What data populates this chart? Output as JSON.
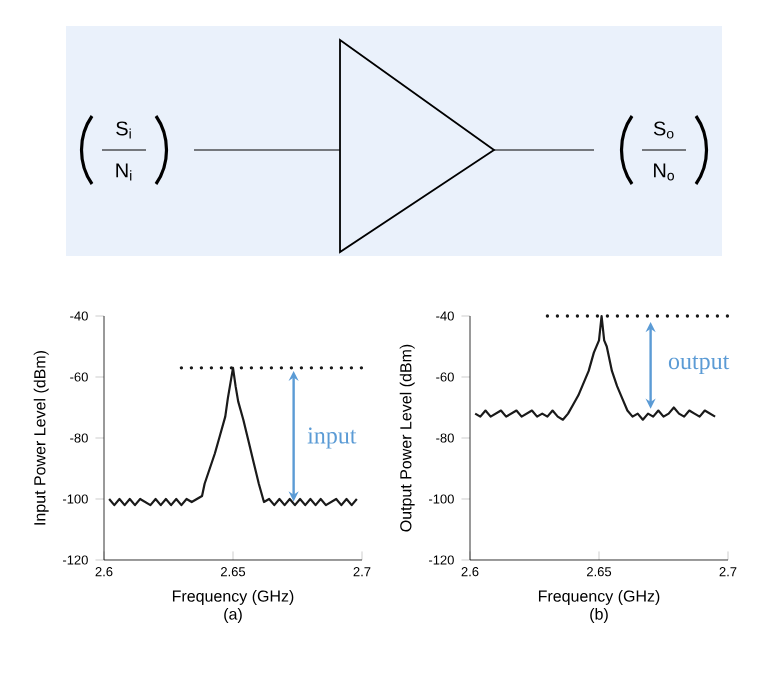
{
  "chart_data": [
    {
      "type": "other",
      "annotations": [
        "S$_{i}$",
        "N$_{i}$",
        "S$_{o}$",
        "N$_{o}$"
      ]
    },
    {
      "type": "line",
      "xlabel": "Frequency (GHz)",
      "ylabel": "Input Power Level (dBm)",
      "annotations": [
        "(a)",
        "input"
      ],
      "xlim": [
        2.6,
        2.7
      ],
      "ylim": [
        -120,
        -40
      ],
      "xticks": [
        2.6,
        2.65,
        2.7
      ],
      "yticks": [
        -120,
        -100,
        -80,
        -60,
        -40
      ],
      "grid": false,
      "marker": "none",
      "series": [
        {
          "color": "#1a1a1a",
          "line_style": "solid",
          "x": [
            2.602,
            2.604,
            2.606,
            2.608,
            2.61,
            2.612,
            2.614,
            2.616,
            2.618,
            2.62,
            2.622,
            2.624,
            2.626,
            2.628,
            2.63,
            2.632,
            2.634,
            2.636,
            2.638,
            2.639,
            2.641,
            2.643,
            2.645,
            2.647,
            2.648,
            2.649,
            2.65,
            2.651,
            2.652,
            2.654,
            2.656,
            2.658,
            2.66,
            2.662,
            2.664,
            2.666,
            2.668,
            2.67,
            2.672,
            2.674,
            2.676,
            2.678,
            2.68,
            2.682,
            2.684,
            2.686,
            2.688,
            2.69,
            2.692,
            2.694,
            2.696,
            2.698
          ],
          "values": [
            -100,
            -102,
            -100,
            -102,
            -100,
            -102,
            -100,
            -101,
            -102,
            -100,
            -102,
            -100,
            -102,
            -100,
            -102,
            -100,
            -101,
            -100,
            -99,
            -95,
            -90,
            -85,
            -79,
            -73,
            -67,
            -62,
            -57,
            -63,
            -68,
            -74,
            -81,
            -88,
            -95,
            -101,
            -100,
            -102,
            -100,
            -102,
            -100,
            -102,
            -100,
            -102,
            -100,
            -102,
            -100,
            -102,
            -101,
            -100,
            -102,
            -100,
            -102,
            -100
          ]
        },
        {
          "color": "#1a1a1a",
          "line_style": "dotted",
          "x": [
            2.63,
            2.7
          ],
          "values": [
            -57,
            -57
          ]
        }
      ]
    },
    {
      "type": "line",
      "xlabel": "Frequency (GHz)",
      "ylabel": "Output Power Level (dBm)",
      "annotations": [
        "(b)",
        "output"
      ],
      "xlim": [
        2.6,
        2.7
      ],
      "ylim": [
        -120,
        -40
      ],
      "xticks": [
        2.6,
        2.65,
        2.7
      ],
      "yticks": [
        -120,
        -100,
        -80,
        -60,
        -40
      ],
      "grid": false,
      "marker": "none",
      "series": [
        {
          "color": "#1a1a1a",
          "line_style": "solid",
          "x": [
            2.602,
            2.604,
            2.606,
            2.608,
            2.61,
            2.612,
            2.614,
            2.616,
            2.618,
            2.62,
            2.622,
            2.624,
            2.626,
            2.628,
            2.63,
            2.632,
            2.634,
            2.636,
            2.638,
            2.64,
            2.642,
            2.644,
            2.646,
            2.648,
            2.65,
            2.651,
            2.652,
            2.653,
            2.655,
            2.657,
            2.659,
            2.661,
            2.663,
            2.665,
            2.667,
            2.669,
            2.671,
            2.673,
            2.675,
            2.677,
            2.679,
            2.681,
            2.683,
            2.685,
            2.687,
            2.689,
            2.691,
            2.693,
            2.695
          ],
          "values": [
            -72,
            -73,
            -71,
            -73,
            -72,
            -71,
            -73,
            -72,
            -71,
            -73,
            -72,
            -71,
            -73,
            -72,
            -73,
            -71,
            -73,
            -74,
            -72,
            -69,
            -66,
            -62,
            -58,
            -52,
            -48,
            -40,
            -48,
            -50,
            -58,
            -63,
            -67,
            -71,
            -73,
            -72,
            -74,
            -72,
            -73,
            -71,
            -73,
            -72,
            -70,
            -72,
            -73,
            -71,
            -72,
            -73,
            -71,
            -72,
            -73
          ]
        },
        {
          "color": "#1a1a1a",
          "line_style": "dotted",
          "x": [
            2.63,
            2.7
          ],
          "values": [
            -40,
            -40
          ]
        }
      ]
    }
  ]
}
